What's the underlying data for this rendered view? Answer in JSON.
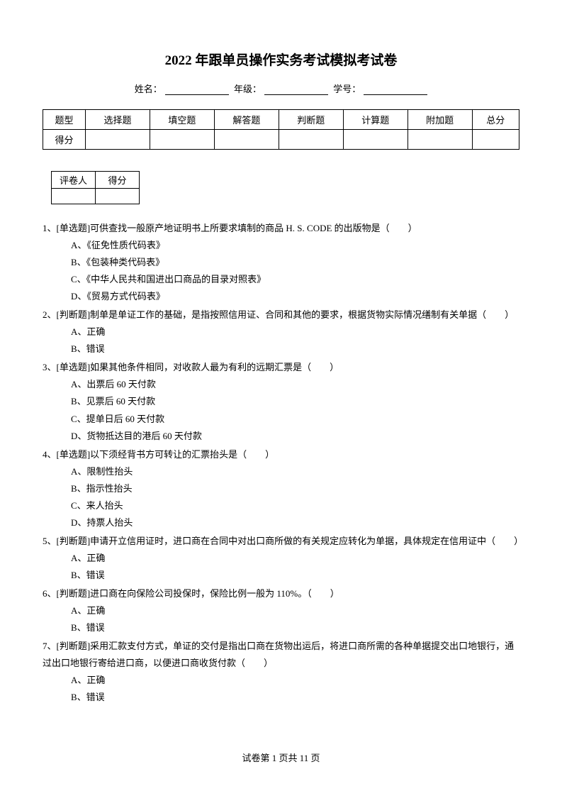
{
  "title": "2022 年跟单员操作实务考试模拟考试卷",
  "studentInfo": {
    "nameLabel": "姓名：",
    "gradeLabel": "年级：",
    "idLabel": "学号："
  },
  "scoreTable": {
    "row1": [
      "题型",
      "选择题",
      "填空题",
      "解答题",
      "判断题",
      "计算题",
      "附加题",
      "总分"
    ],
    "row2Label": "得分"
  },
  "graderTable": {
    "col1": "评卷人",
    "col2": "得分"
  },
  "questions": [
    {
      "stem": "1、[单选题]可供查找一般原产地证明书上所要求填制的商品 H. S. CODE 的出版物是（　　）",
      "options": [
        "A、《征免性质代码表》",
        "B、《包装种类代码表》",
        "C、《中华人民共和国进出口商品的目录对照表》",
        "D、《贸易方式代码表》"
      ]
    },
    {
      "stem": "2、[判断题]制单是单证工作的基础，是指按照信用证、合同和其他的要求，根据货物实际情况缮制有关单据（　　）",
      "options": [
        "A、正确",
        "B、错误"
      ]
    },
    {
      "stem": "3、[单选题]如果其他条件相同，对收款人最为有利的远期汇票是（　　）",
      "options": [
        "A、出票后 60 天付款",
        "B、见票后 60 天付款",
        "C、提单日后 60 天付款",
        "D、货物抵达目的港后 60 天付款"
      ]
    },
    {
      "stem": "4、[单选题]以下须经背书方可转让的汇票抬头是（　　）",
      "options": [
        "A、限制性抬头",
        "B、指示性抬头",
        "C、来人抬头",
        "D、持票人抬头"
      ]
    },
    {
      "stem": "5、[判断题]申请开立信用证时，进口商在合同中对出口商所做的有关规定应转化为单据，具体规定在信用证中（　　）",
      "options": [
        "A、正确",
        "B、错误"
      ]
    },
    {
      "stem": "6、[判断题]进口商在向保险公司投保时，保险比例一般为 110%。（　　）",
      "options": [
        "A、正确",
        "B、错误"
      ]
    },
    {
      "stem": "7、[判断题]采用汇款支付方式，单证的交付是指出口商在货物出运后，将进口商所需的各种单据提交出口地银行，通过出口地银行寄给进口商，以便进口商收货付款（　　）",
      "options": [
        "A、正确",
        "B、错误"
      ]
    }
  ],
  "footer": "试卷第 1 页共 11 页"
}
